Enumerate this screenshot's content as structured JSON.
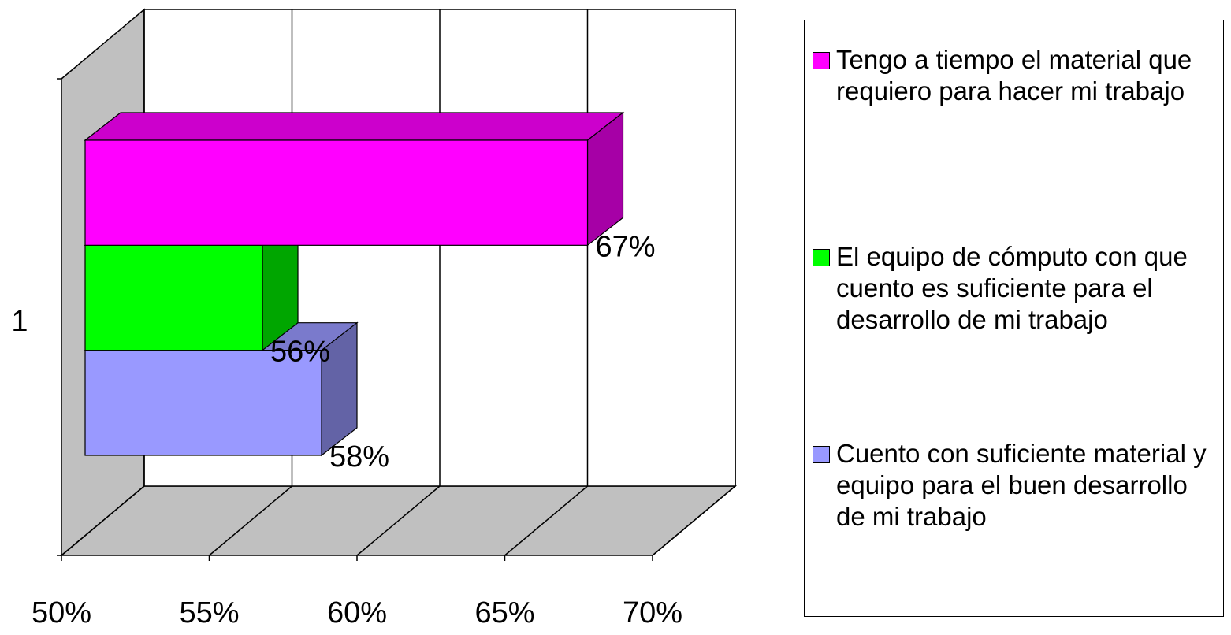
{
  "chart_data": {
    "type": "bar3d-horizontal",
    "categories": [
      "1"
    ],
    "series": [
      {
        "name": "Tengo a tiempo el material que requiero para hacer mi trabajo",
        "color": "#ff00ff",
        "values": [
          67
        ],
        "value_labels": [
          "67%"
        ]
      },
      {
        "name": "El equipo de cómputo con que cuento es suficiente para el desarrollo de mi trabajo",
        "color": "#00ff00",
        "values": [
          56
        ],
        "value_labels": [
          "56%"
        ]
      },
      {
        "name": "Cuento con suficiente material y equipo para el buen desarrollo de mi trabajo",
        "color": "#9999ff",
        "values": [
          58
        ],
        "value_labels": [
          "58%"
        ]
      }
    ],
    "xlim": [
      50,
      70
    ],
    "xticks": [
      {
        "value": 50,
        "label": "50%"
      },
      {
        "value": 55,
        "label": "55%"
      },
      {
        "value": 60,
        "label": "60%"
      },
      {
        "value": 65,
        "label": "65%"
      },
      {
        "value": 70,
        "label": "70%"
      }
    ],
    "grid": true,
    "legend": "right"
  }
}
